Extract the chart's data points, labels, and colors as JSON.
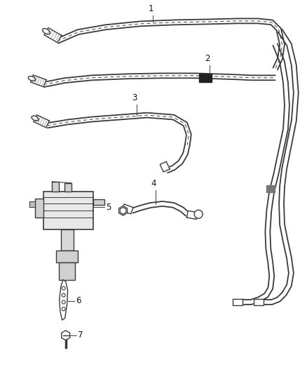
{
  "background_color": "#ffffff",
  "line_color": "#3a3a3a",
  "fig_width": 4.38,
  "fig_height": 5.33,
  "dpi": 100,
  "label_fontsize": 8.5
}
